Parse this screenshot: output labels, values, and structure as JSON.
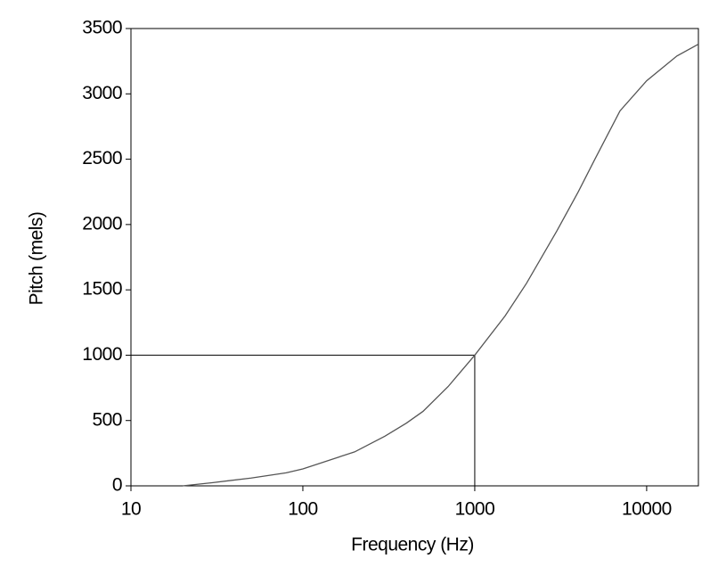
{
  "chart_data": {
    "type": "line",
    "x_label": "Frequency (Hz)",
    "y_label": "Pitch (mels)",
    "x": [
      20,
      30,
      50,
      80,
      100,
      200,
      300,
      400,
      500,
      700,
      1000,
      1500,
      2000,
      3000,
      4000,
      5000,
      7000,
      10000,
      15000,
      20000
    ],
    "values": [
      0,
      25,
      60,
      100,
      130,
      260,
      380,
      480,
      570,
      760,
      1000,
      1300,
      1550,
      1950,
      2250,
      2500,
      2870,
      3100,
      3290,
      3380
    ],
    "color": "#555555",
    "xscale": "log",
    "xlim": [
      10,
      20000
    ],
    "xticks": [
      10,
      100,
      1000,
      10000
    ],
    "ylim": [
      0,
      3500
    ],
    "yticks": [
      0,
      500,
      1000,
      1500,
      2000,
      2500,
      3000,
      3500
    ],
    "reference_point": {
      "x": 1000,
      "y": 1000
    }
  }
}
